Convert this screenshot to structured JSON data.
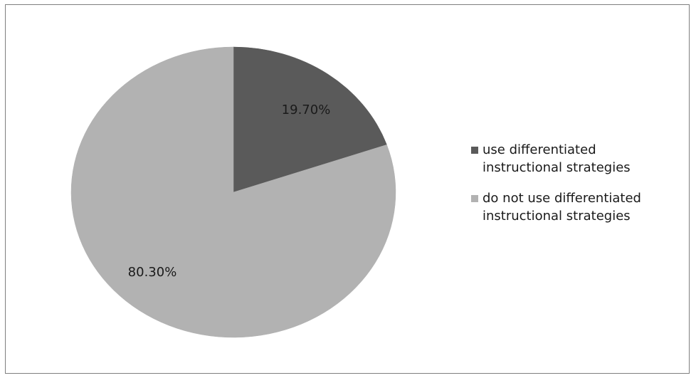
{
  "chart_data": {
    "type": "pie",
    "title": "",
    "slices": [
      {
        "label": "use differentiated instructional strategies",
        "value": 19.7,
        "value_label": "19.70%",
        "color": "#5a5a5a"
      },
      {
        "label": "do not use differentiated instructional strategies",
        "value": 80.3,
        "value_label": "80.30%",
        "color": "#b2b2b2"
      }
    ],
    "legend": {
      "placement": "right",
      "items": [
        {
          "line1": "use differentiated",
          "line2": "instructional strategies",
          "color": "#5a5a5a"
        },
        {
          "line1": "do not use differentiated",
          "line2": "instructional strategies",
          "color": "#b2b2b2"
        }
      ]
    }
  }
}
